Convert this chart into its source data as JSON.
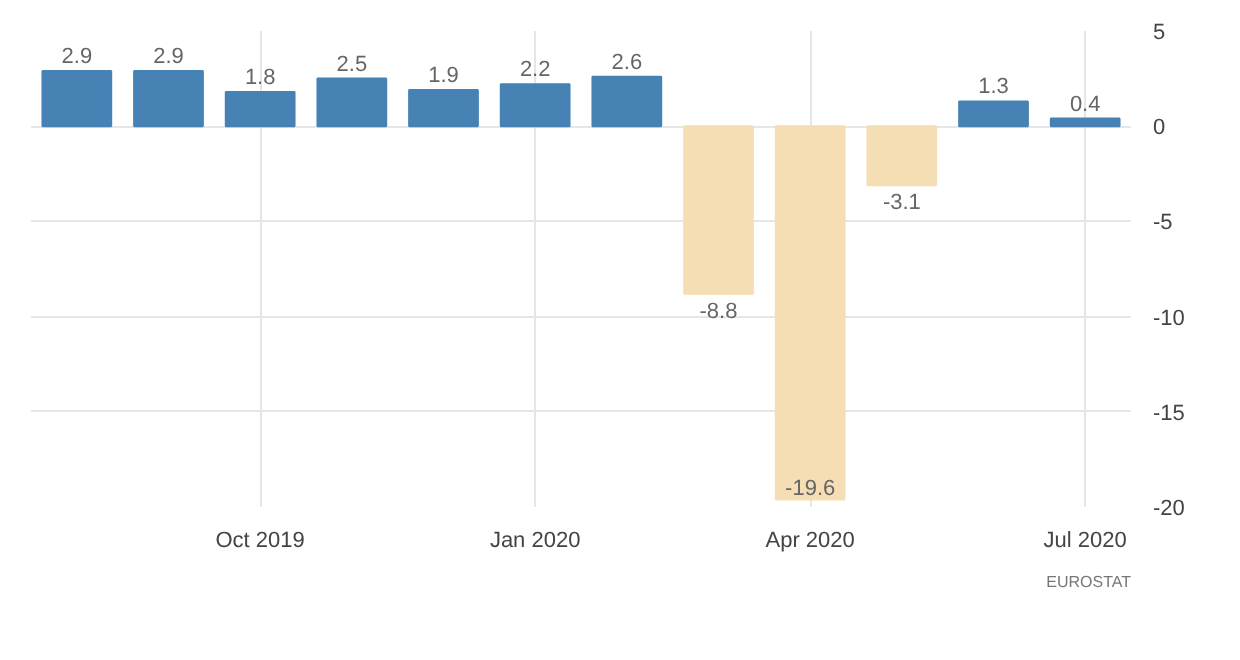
{
  "chart_data": {
    "type": "bar",
    "categories": [
      null,
      null,
      "Oct 2019",
      null,
      null,
      "Jan 2020",
      null,
      null,
      "Apr 2020",
      null,
      null,
      "Jul 2020"
    ],
    "values": [
      2.9,
      2.9,
      1.8,
      2.5,
      1.9,
      2.2,
      2.6,
      -8.8,
      -19.6,
      -3.1,
      1.3,
      0.4
    ],
    "colors": [
      "#4682b4",
      "#4682b4",
      "#4682b4",
      "#4682b4",
      "#4682b4",
      "#4682b4",
      "#4682b4",
      "#f5deb3",
      "#f5deb3",
      "#f5deb3",
      "#4682b4",
      "#4682b4"
    ],
    "ylim": [
      -20,
      5
    ],
    "yticks": [
      5,
      0,
      -5,
      -10,
      -15,
      -20
    ],
    "grid": true,
    "data_labels": true,
    "annotations": [
      "EUROSTAT"
    ]
  }
}
